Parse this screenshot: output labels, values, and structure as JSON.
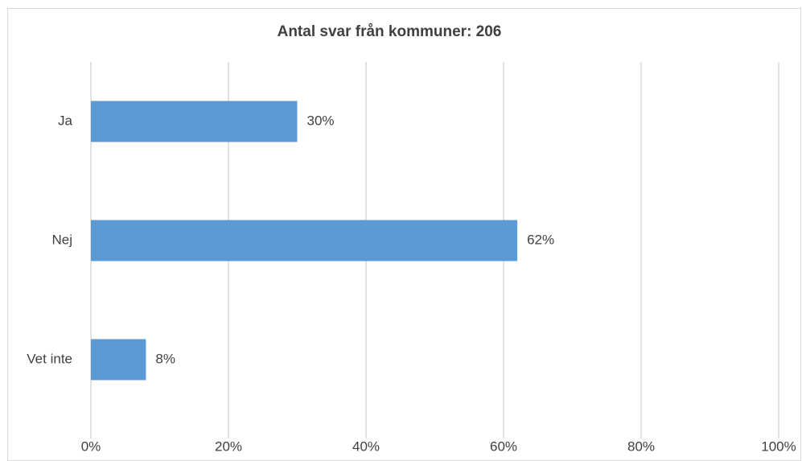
{
  "chart_data": {
    "type": "bar",
    "orientation": "horizontal",
    "title": "Antal svar från kommuner: 206",
    "categories": [
      "Ja",
      "Nej",
      "Vet inte"
    ],
    "values": [
      30,
      62,
      8
    ],
    "value_labels": [
      "30%",
      "62%",
      "8%"
    ],
    "color": "#5b9bd5",
    "xlim": [
      0,
      100
    ],
    "xticks": [
      {
        "value": 0,
        "label": "0%"
      },
      {
        "value": 20,
        "label": "20%"
      },
      {
        "value": 40,
        "label": "40%"
      },
      {
        "value": 60,
        "label": "60%"
      },
      {
        "value": 80,
        "label": "80%"
      },
      {
        "value": 100,
        "label": "100%"
      }
    ],
    "grid": true
  }
}
